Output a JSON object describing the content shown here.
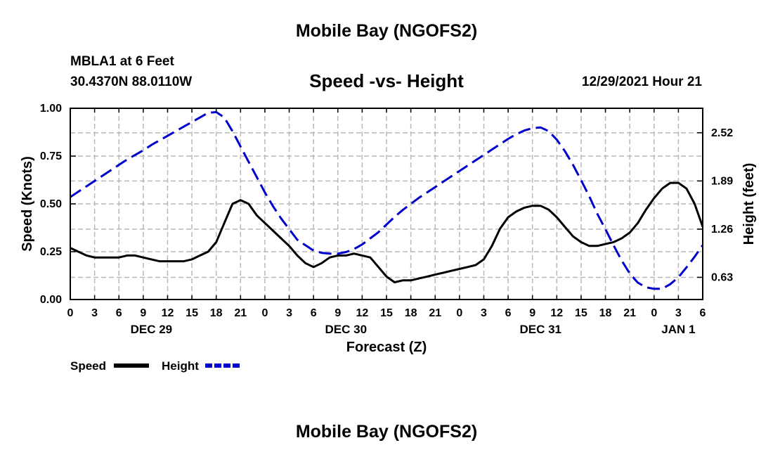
{
  "header": {
    "title": "Mobile Bay (NGOFS2)",
    "station": "MBLA1 at 6 Feet",
    "coordinates": "30.4370N  88.0110W",
    "datetime": "12/29/2021 Hour 21"
  },
  "footer": {
    "title": "Mobile Bay (NGOFS2)"
  },
  "chart_data": {
    "type": "line",
    "title": "Speed -vs- Height",
    "xlabel": "Forecast (Z)",
    "ylabel": "Speed (Knots)",
    "y2label": "Height (feet)",
    "x_hours_since_dec29_00z": [
      0,
      78
    ],
    "x_tick_labels": [
      "0",
      "3",
      "6",
      "9",
      "12",
      "15",
      "18",
      "21",
      "0",
      "3",
      "6",
      "9",
      "12",
      "15",
      "18",
      "21",
      "0",
      "3",
      "6",
      "9",
      "12",
      "15",
      "18",
      "21",
      "0",
      "3",
      "6"
    ],
    "date_labels": [
      {
        "label": "DEC 29",
        "hour": 10
      },
      {
        "label": "DEC 30",
        "hour": 34
      },
      {
        "label": "DEC 31",
        "hour": 58
      },
      {
        "label": "JAN 1",
        "hour": 75
      }
    ],
    "ylim": [
      0,
      1.0
    ],
    "y_ticks": [
      0,
      0.25,
      0.5,
      0.75,
      1.0
    ],
    "y_tick_labels": [
      "0.00",
      "0.25",
      "0.50",
      "0.75",
      "1.00"
    ],
    "y2lim": [
      0.34,
      2.84
    ],
    "y2_ticks": [
      0.63,
      1.26,
      1.89,
      2.52
    ],
    "y2_tick_labels": [
      "0.63",
      "1.26",
      "1.89",
      "2.52"
    ],
    "grid": true,
    "series": [
      {
        "name": "Speed",
        "color": "#000000",
        "dash": "solid",
        "axis": "left",
        "x": [
          0,
          1,
          2,
          3,
          4,
          5,
          6,
          7,
          8,
          9,
          10,
          11,
          12,
          13,
          14,
          15,
          16,
          17,
          18,
          19,
          20,
          21,
          22,
          23,
          24,
          25,
          26,
          27,
          28,
          29,
          30,
          31,
          32,
          33,
          34,
          35,
          36,
          37,
          38,
          39,
          40,
          41,
          42,
          43,
          44,
          45,
          46,
          47,
          48,
          49,
          50,
          51,
          52,
          53,
          54,
          55,
          56,
          57,
          58,
          59,
          60,
          61,
          62,
          63,
          64,
          65,
          66,
          67,
          68,
          69,
          70,
          71,
          72,
          73,
          74,
          75,
          76,
          77,
          78
        ],
        "values": [
          0.27,
          0.25,
          0.23,
          0.22,
          0.22,
          0.22,
          0.22,
          0.23,
          0.23,
          0.22,
          0.21,
          0.2,
          0.2,
          0.2,
          0.2,
          0.21,
          0.23,
          0.25,
          0.3,
          0.4,
          0.5,
          0.52,
          0.5,
          0.44,
          0.4,
          0.36,
          0.32,
          0.28,
          0.23,
          0.19,
          0.17,
          0.19,
          0.22,
          0.23,
          0.23,
          0.24,
          0.23,
          0.22,
          0.17,
          0.12,
          0.09,
          0.1,
          0.1,
          0.11,
          0.12,
          0.13,
          0.14,
          0.15,
          0.16,
          0.17,
          0.18,
          0.21,
          0.28,
          0.37,
          0.43,
          0.46,
          0.48,
          0.49,
          0.49,
          0.47,
          0.43,
          0.38,
          0.33,
          0.3,
          0.28,
          0.28,
          0.29,
          0.3,
          0.32,
          0.35,
          0.4,
          0.47,
          0.53,
          0.58,
          0.61,
          0.61,
          0.58,
          0.5,
          0.38
        ]
      },
      {
        "name": "Height",
        "color": "#0000cc",
        "dash": "dashed",
        "axis": "right",
        "x": [
          0,
          1,
          2,
          3,
          4,
          5,
          6,
          7,
          8,
          9,
          10,
          11,
          12,
          13,
          14,
          15,
          16,
          17,
          18,
          19,
          20,
          21,
          22,
          23,
          24,
          25,
          26,
          27,
          28,
          29,
          30,
          31,
          32,
          33,
          34,
          35,
          36,
          37,
          38,
          39,
          40,
          41,
          42,
          43,
          44,
          45,
          46,
          47,
          48,
          49,
          50,
          51,
          52,
          53,
          54,
          55,
          56,
          57,
          58,
          59,
          60,
          61,
          62,
          63,
          64,
          65,
          66,
          67,
          68,
          69,
          70,
          71,
          72,
          73,
          74,
          75,
          76,
          77,
          78
        ],
        "values": [
          1.68,
          1.75,
          1.82,
          1.89,
          1.96,
          2.03,
          2.1,
          2.17,
          2.23,
          2.29,
          2.36,
          2.42,
          2.48,
          2.54,
          2.6,
          2.66,
          2.72,
          2.78,
          2.79,
          2.72,
          2.54,
          2.34,
          2.14,
          1.94,
          1.74,
          1.56,
          1.4,
          1.26,
          1.12,
          1.05,
          0.98,
          0.95,
          0.94,
          0.94,
          0.96,
          1.0,
          1.06,
          1.14,
          1.22,
          1.32,
          1.42,
          1.51,
          1.59,
          1.67,
          1.74,
          1.81,
          1.88,
          1.95,
          2.02,
          2.09,
          2.16,
          2.23,
          2.3,
          2.37,
          2.44,
          2.5,
          2.55,
          2.58,
          2.59,
          2.54,
          2.43,
          2.28,
          2.1,
          1.9,
          1.69,
          1.46,
          1.26,
          1.05,
          0.85,
          0.68,
          0.56,
          0.5,
          0.48,
          0.48,
          0.54,
          0.63,
          0.76,
          0.9,
          1.05
        ]
      }
    ],
    "legend": [
      {
        "label": "Speed",
        "color": "#000000",
        "dash": "solid"
      },
      {
        "label": "Height",
        "color": "#0000cc",
        "dash": "dashed"
      }
    ],
    "legend_position": "bottom-left"
  }
}
